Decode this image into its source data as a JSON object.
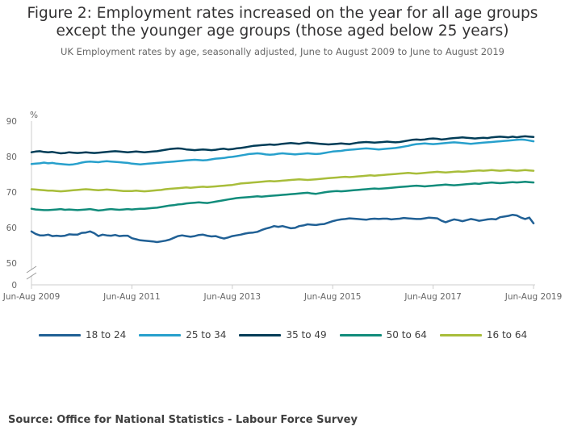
{
  "title": "Figure 2: Employment rates increased on the year for all age groups except the younger age groups (those aged below 25 years)",
  "subtitle": "UK Employment rates by age, seasonally adjusted, June to August 2009 to June to August 2019",
  "source": "Source: Office for National Statistics - Labour Force Survey",
  "chart_data": {
    "type": "line",
    "ylabel": "%",
    "y_ticks": [
      0,
      50,
      60,
      70,
      80,
      90
    ],
    "ylim": [
      50,
      90
    ],
    "axis_break": true,
    "x_tick_labels": [
      "Jun-Aug 2009",
      "Jun-Aug 2011",
      "Jun-Aug 2013",
      "Jun-Aug 2015",
      "Jun-Aug 2017",
      "Jun-Aug 2019"
    ],
    "x_tick_positions": [
      0,
      24,
      48,
      72,
      96,
      120
    ],
    "grid": false,
    "legend_position": "bottom",
    "series": [
      {
        "name": "18 to 24",
        "color": "#206095",
        "values": [
          58.9,
          58.2,
          57.8,
          57.8,
          58.0,
          57.6,
          57.7,
          57.6,
          57.7,
          58.1,
          58.0,
          58.0,
          58.5,
          58.6,
          58.9,
          58.4,
          57.6,
          58.0,
          57.8,
          57.7,
          57.9,
          57.6,
          57.7,
          57.7,
          57.0,
          56.7,
          56.4,
          56.3,
          56.2,
          56.1,
          55.9,
          56.1,
          56.3,
          56.6,
          57.1,
          57.6,
          57.8,
          57.6,
          57.4,
          57.6,
          57.9,
          58.0,
          57.7,
          57.5,
          57.6,
          57.2,
          56.9,
          57.2,
          57.6,
          57.8,
          58.0,
          58.3,
          58.5,
          58.6,
          58.8,
          59.3,
          59.7,
          60.0,
          60.4,
          60.2,
          60.4,
          60.1,
          59.8,
          59.9,
          60.4,
          60.6,
          60.9,
          60.8,
          60.7,
          60.9,
          61.0,
          61.4,
          61.8,
          62.1,
          62.3,
          62.4,
          62.6,
          62.5,
          62.4,
          62.3,
          62.2,
          62.4,
          62.5,
          62.4,
          62.5,
          62.5,
          62.3,
          62.4,
          62.5,
          62.7,
          62.6,
          62.5,
          62.4,
          62.4,
          62.6,
          62.8,
          62.7,
          62.6,
          61.9,
          61.5,
          61.9,
          62.3,
          62.1,
          61.8,
          62.1,
          62.4,
          62.2,
          61.9,
          62.1,
          62.3,
          62.4,
          62.3,
          62.9,
          63.1,
          63.3,
          63.6,
          63.4,
          62.8,
          62.4,
          62.8,
          61.2
        ]
      },
      {
        "name": "25 to 34",
        "color": "#27a0cc",
        "values": [
          77.9,
          78.0,
          78.1,
          78.3,
          78.1,
          78.2,
          78.0,
          77.9,
          77.8,
          77.7,
          77.8,
          78.0,
          78.3,
          78.5,
          78.6,
          78.5,
          78.4,
          78.6,
          78.7,
          78.6,
          78.5,
          78.4,
          78.3,
          78.2,
          78.0,
          77.9,
          77.8,
          77.9,
          78.0,
          78.1,
          78.2,
          78.3,
          78.4,
          78.5,
          78.6,
          78.7,
          78.8,
          78.9,
          79.0,
          79.1,
          79.0,
          78.9,
          79.0,
          79.2,
          79.4,
          79.5,
          79.6,
          79.8,
          79.9,
          80.1,
          80.3,
          80.5,
          80.7,
          80.8,
          80.9,
          80.8,
          80.6,
          80.5,
          80.6,
          80.8,
          80.9,
          80.8,
          80.7,
          80.6,
          80.7,
          80.8,
          80.9,
          80.8,
          80.7,
          80.8,
          81.0,
          81.2,
          81.4,
          81.5,
          81.6,
          81.8,
          81.9,
          82.0,
          82.1,
          82.2,
          82.3,
          82.2,
          82.1,
          82.0,
          82.1,
          82.2,
          82.3,
          82.4,
          82.6,
          82.8,
          83.0,
          83.3,
          83.5,
          83.6,
          83.7,
          83.6,
          83.5,
          83.6,
          83.7,
          83.8,
          83.9,
          84.0,
          83.9,
          83.8,
          83.7,
          83.6,
          83.7,
          83.8,
          83.9,
          84.0,
          84.1,
          84.2,
          84.3,
          84.4,
          84.5,
          84.6,
          84.7,
          84.8,
          84.7,
          84.5,
          84.3
        ]
      },
      {
        "name": "35 to 49",
        "color": "#003c57",
        "values": [
          81.2,
          81.4,
          81.5,
          81.3,
          81.2,
          81.3,
          81.1,
          80.9,
          81.0,
          81.2,
          81.1,
          81.0,
          81.1,
          81.2,
          81.1,
          81.0,
          81.1,
          81.2,
          81.3,
          81.4,
          81.5,
          81.4,
          81.3,
          81.2,
          81.3,
          81.4,
          81.3,
          81.2,
          81.3,
          81.4,
          81.5,
          81.7,
          81.9,
          82.1,
          82.2,
          82.3,
          82.2,
          82.0,
          81.9,
          81.8,
          81.9,
          82.0,
          81.9,
          81.8,
          81.9,
          82.1,
          82.2,
          82.0,
          82.1,
          82.3,
          82.4,
          82.6,
          82.8,
          83.0,
          83.1,
          83.2,
          83.3,
          83.4,
          83.3,
          83.4,
          83.6,
          83.7,
          83.8,
          83.7,
          83.6,
          83.8,
          83.9,
          83.8,
          83.7,
          83.6,
          83.5,
          83.4,
          83.5,
          83.6,
          83.7,
          83.6,
          83.5,
          83.7,
          83.9,
          84.0,
          84.1,
          84.0,
          83.9,
          84.0,
          84.1,
          84.2,
          84.1,
          84.0,
          84.1,
          84.3,
          84.5,
          84.7,
          84.8,
          84.7,
          84.8,
          85.0,
          85.1,
          85.0,
          84.8,
          84.9,
          85.1,
          85.2,
          85.3,
          85.4,
          85.3,
          85.2,
          85.1,
          85.2,
          85.3,
          85.2,
          85.4,
          85.5,
          85.6,
          85.5,
          85.4,
          85.6,
          85.4,
          85.6,
          85.7,
          85.6,
          85.5
        ]
      },
      {
        "name": "50 to 64",
        "color": "#118c7b",
        "values": [
          65.3,
          65.1,
          65.0,
          64.9,
          64.9,
          65.0,
          65.1,
          65.2,
          65.0,
          65.1,
          65.0,
          64.9,
          65.0,
          65.1,
          65.2,
          65.0,
          64.8,
          64.9,
          65.1,
          65.2,
          65.1,
          65.0,
          65.1,
          65.2,
          65.1,
          65.2,
          65.3,
          65.3,
          65.4,
          65.5,
          65.6,
          65.8,
          66.0,
          66.2,
          66.3,
          66.5,
          66.6,
          66.8,
          66.9,
          67.0,
          67.1,
          67.0,
          66.9,
          67.1,
          67.3,
          67.5,
          67.7,
          67.9,
          68.1,
          68.3,
          68.4,
          68.5,
          68.6,
          68.7,
          68.8,
          68.7,
          68.8,
          68.9,
          69.0,
          69.1,
          69.2,
          69.3,
          69.4,
          69.5,
          69.6,
          69.7,
          69.8,
          69.6,
          69.5,
          69.7,
          69.9,
          70.1,
          70.2,
          70.3,
          70.2,
          70.3,
          70.4,
          70.5,
          70.6,
          70.7,
          70.8,
          70.9,
          71.0,
          70.9,
          71.0,
          71.1,
          71.2,
          71.3,
          71.4,
          71.5,
          71.6,
          71.7,
          71.8,
          71.7,
          71.6,
          71.7,
          71.8,
          71.9,
          72.0,
          72.1,
          72.0,
          71.9,
          72.0,
          72.1,
          72.2,
          72.3,
          72.4,
          72.3,
          72.5,
          72.6,
          72.7,
          72.6,
          72.5,
          72.6,
          72.7,
          72.8,
          72.7,
          72.8,
          72.9,
          72.8,
          72.7
        ]
      },
      {
        "name": "16 to 64",
        "color": "#a8bd3a",
        "values": [
          70.8,
          70.7,
          70.6,
          70.5,
          70.4,
          70.4,
          70.3,
          70.2,
          70.3,
          70.4,
          70.5,
          70.6,
          70.7,
          70.8,
          70.7,
          70.6,
          70.5,
          70.6,
          70.7,
          70.6,
          70.5,
          70.4,
          70.3,
          70.3,
          70.3,
          70.4,
          70.3,
          70.2,
          70.3,
          70.4,
          70.5,
          70.6,
          70.8,
          70.9,
          71.0,
          71.1,
          71.2,
          71.3,
          71.2,
          71.3,
          71.4,
          71.5,
          71.4,
          71.5,
          71.6,
          71.7,
          71.8,
          71.9,
          72.0,
          72.2,
          72.4,
          72.5,
          72.6,
          72.7,
          72.8,
          72.9,
          73.0,
          73.1,
          73.0,
          73.1,
          73.2,
          73.3,
          73.4,
          73.5,
          73.6,
          73.5,
          73.4,
          73.5,
          73.6,
          73.7,
          73.8,
          73.9,
          74.0,
          74.1,
          74.2,
          74.3,
          74.2,
          74.3,
          74.4,
          74.5,
          74.6,
          74.7,
          74.6,
          74.7,
          74.8,
          74.9,
          75.0,
          75.1,
          75.2,
          75.3,
          75.4,
          75.3,
          75.2,
          75.3,
          75.4,
          75.5,
          75.6,
          75.7,
          75.6,
          75.5,
          75.6,
          75.7,
          75.8,
          75.7,
          75.8,
          75.9,
          76.0,
          76.1,
          76.0,
          76.1,
          76.2,
          76.1,
          76.0,
          76.1,
          76.2,
          76.1,
          76.0,
          76.1,
          76.2,
          76.1,
          76.0
        ]
      }
    ]
  }
}
